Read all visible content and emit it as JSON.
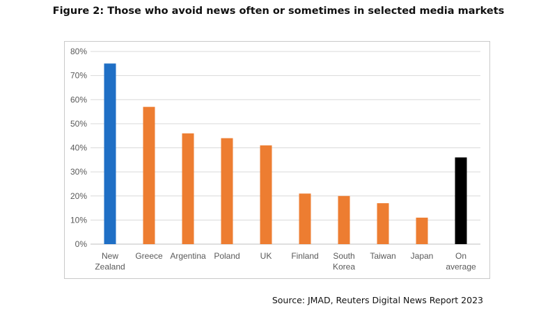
{
  "title": "Figure 2: Those who avoid news often or sometimes in selected media markets",
  "source": "Source: JMAD, Reuters Digital News Report 2023",
  "chart_data": {
    "type": "bar",
    "title": "Figure 2: Those who avoid news often or sometimes in selected media markets",
    "xlabel": "",
    "ylabel": "",
    "ylim": [
      0,
      80
    ],
    "y_ticks": [
      0,
      10,
      20,
      30,
      40,
      50,
      60,
      70,
      80
    ],
    "y_tick_labels": [
      "0%",
      "10%",
      "20%",
      "30%",
      "40%",
      "50%",
      "60%",
      "70%",
      "80%"
    ],
    "categories": [
      "New Zealand",
      "Greece",
      "Argentina",
      "Poland",
      "UK",
      "Finland",
      "South Korea",
      "Taiwan",
      "Japan",
      "On average"
    ],
    "category_lines": [
      [
        "New",
        "Zealand"
      ],
      [
        "Greece"
      ],
      [
        "Argentina"
      ],
      [
        "Poland"
      ],
      [
        "UK"
      ],
      [
        "Finland"
      ],
      [
        "South",
        "Korea"
      ],
      [
        "Taiwan"
      ],
      [
        "Japan"
      ],
      [
        "On",
        "average"
      ]
    ],
    "values": [
      75,
      57,
      46,
      44,
      41,
      21,
      20,
      17,
      11,
      36
    ],
    "bar_colors": [
      "#1f6fc5",
      "#ed7d31",
      "#ed7d31",
      "#ed7d31",
      "#ed7d31",
      "#ed7d31",
      "#ed7d31",
      "#ed7d31",
      "#ed7d31",
      "#000000"
    ],
    "grid": true,
    "legend": "none"
  },
  "colors": {
    "grid": "#d9d9d9",
    "axis": "#bfbfbf",
    "tick_text": "#595959"
  }
}
